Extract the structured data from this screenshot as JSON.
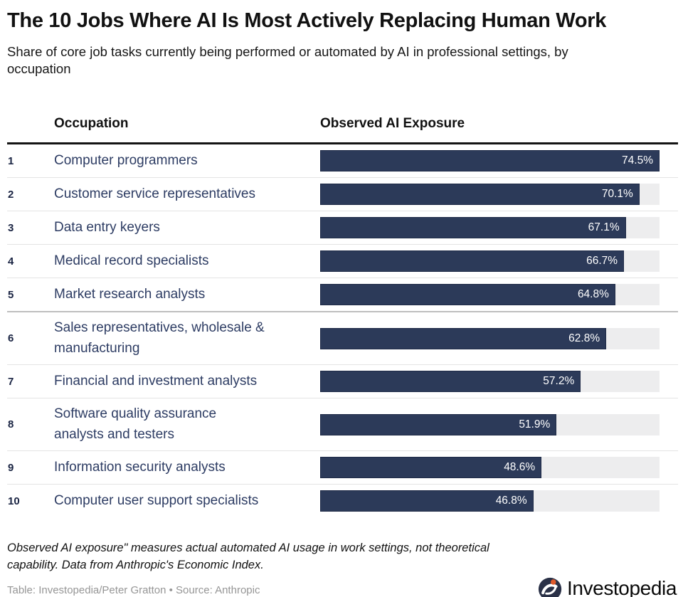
{
  "page": {
    "title": "The 10 Jobs Where AI Is Most Actively Replacing Human Work",
    "subtitle": "Share of core job tasks currently being performed or automated by AI in professional settings, by\noccupation"
  },
  "table": {
    "headers": {
      "occupation": "Occupation",
      "exposure": "Observed AI Exposure"
    },
    "rows": [
      {
        "rank": "1",
        "occupation": "Computer programmers",
        "value": 74.5,
        "label": "74.5%"
      },
      {
        "rank": "2",
        "occupation": "Customer service representatives",
        "value": 70.1,
        "label": "70.1%"
      },
      {
        "rank": "3",
        "occupation": "Data entry keyers",
        "value": 67.1,
        "label": "67.1%"
      },
      {
        "rank": "4",
        "occupation": "Medical record specialists",
        "value": 66.7,
        "label": "66.7%"
      },
      {
        "rank": "5",
        "occupation": "Market research analysts",
        "value": 64.8,
        "label": "64.8%"
      },
      {
        "rank": "6",
        "occupation": "Sales representatives, wholesale &\nmanufacturing",
        "value": 62.8,
        "label": "62.8%"
      },
      {
        "rank": "7",
        "occupation": "Financial and investment analysts",
        "value": 57.2,
        "label": "57.2%"
      },
      {
        "rank": "8",
        "occupation": "Software quality assurance\nanalysts and testers",
        "value": 51.9,
        "label": "51.9%"
      },
      {
        "rank": "9",
        "occupation": "Information security analysts",
        "value": 48.6,
        "label": "48.6%"
      },
      {
        "rank": "10",
        "occupation": "Computer user support specialists",
        "value": 46.8,
        "label": "46.8%"
      }
    ]
  },
  "chart_data": {
    "type": "bar",
    "orientation": "horizontal",
    "title": "The 10 Jobs Where AI Is Most Actively Replacing Human Work",
    "subtitle": "Share of core job tasks currently being performed or automated by AI in professional settings, by occupation",
    "categories": [
      "Computer programmers",
      "Customer service representatives",
      "Data entry keyers",
      "Medical record specialists",
      "Market research analysts",
      "Sales representatives, wholesale & manufacturing",
      "Financial and investment analysts",
      "Software quality assurance analysts and testers",
      "Information security analysts",
      "Computer user support specialists"
    ],
    "values": [
      74.5,
      70.1,
      67.1,
      66.7,
      64.8,
      62.8,
      57.2,
      51.9,
      48.6,
      46.8
    ],
    "value_labels": [
      "74.5%",
      "70.1%",
      "67.1%",
      "66.7%",
      "64.8%",
      "62.8%",
      "57.2%",
      "51.9%",
      "48.6%",
      "46.8%"
    ],
    "xlabel": "Observed AI Exposure",
    "unit": "%",
    "axis_range_note": "bars scaled so max value 74.5% fills the full track width",
    "grid": false,
    "legend": false
  },
  "footer": {
    "note": "Observed AI exposure\" measures actual automated AI usage in work settings, not theoretical\ncapability. Data from Anthropic's Economic Index.",
    "credit": "Table: Investopedia/Peter Gratton • Source: Anthropic",
    "logo_text": "Investopedia"
  },
  "colors": {
    "bar": "#2c3a59",
    "bar_border": "#1f2b47",
    "bar_label_text": "#ffffff",
    "track": "#ededee",
    "occupation_text": "#2d3c63",
    "rank_text": "#1a2443",
    "header_rule": "#141414",
    "row_divider": "#e4e4e4",
    "group_divider": "#bfbfbf",
    "credit_text": "#969696",
    "logo_navy": "#2a3147",
    "logo_orange": "#e05a2b"
  }
}
